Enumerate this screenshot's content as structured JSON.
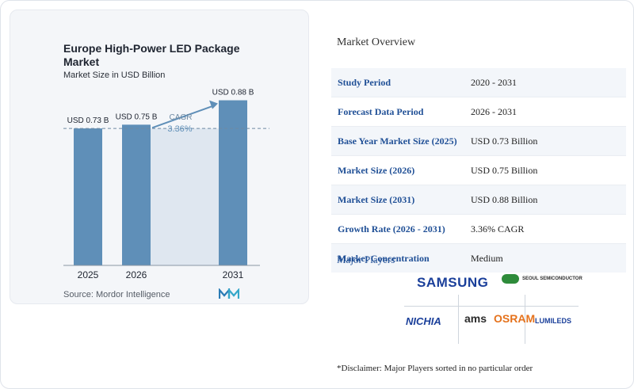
{
  "chart_data": {
    "type": "bar",
    "title": "Europe High-Power LED Package Market",
    "subtitle": "Market Size in USD Billion",
    "categories": [
      "2025",
      "2026",
      "2031"
    ],
    "values": [
      0.73,
      0.75,
      0.88
    ],
    "data_labels": [
      "USD 0.73 B",
      "USD 0.75 B",
      "USD 0.88 B"
    ],
    "cagr_label": "CAGR",
    "cagr_value": "3.36%",
    "ylim": [
      0,
      0.95
    ],
    "bar_color": "#5f8fb8",
    "source": "Source: Mordor Intelligence"
  },
  "overview": {
    "title": "Market Overview",
    "rows": [
      {
        "key": "Study Period",
        "value": "2020 - 2031"
      },
      {
        "key": "Forecast Data Period",
        "value": "2026 - 2031"
      },
      {
        "key": "Base Year Market Size (2025)",
        "value": "USD 0.73 Billion"
      },
      {
        "key": "Market Size (2026)",
        "value": "USD 0.75 Billion"
      },
      {
        "key": "Market Size (2031)",
        "value": "USD 0.88 Billion"
      },
      {
        "key": "Growth Rate (2026 - 2031)",
        "value": "3.36% CAGR"
      },
      {
        "key": "Market Concentration",
        "value": "Medium"
      }
    ]
  },
  "players": {
    "title": "Major Players",
    "logos": {
      "samsung": "SAMSUNG",
      "seoul": "SEOUL SEMICONDUCTOR",
      "nichia": "NICHIA",
      "ams": "ams",
      "osram": "OSRAM",
      "lumileds": "LUMILEDS"
    }
  },
  "disclaimer": "*Disclaimer: Major Players sorted in no particular order"
}
